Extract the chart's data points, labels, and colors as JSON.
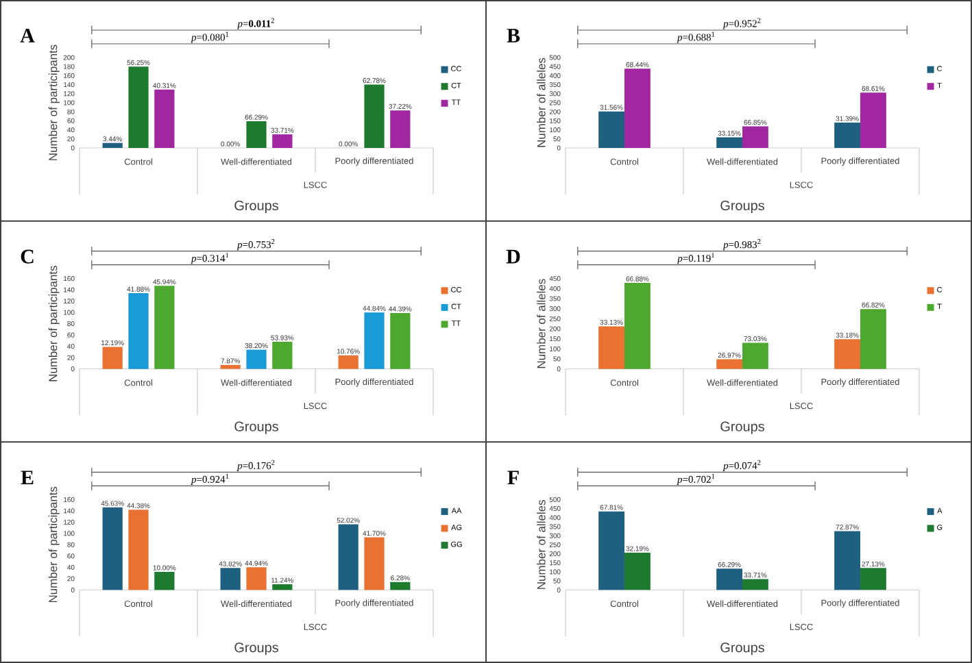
{
  "chart_data": [
    {
      "type": "bar",
      "title": "A",
      "xlabel": "Groups",
      "ylabel": "Number of participants",
      "categories": [
        "Control",
        "Well-differentiated",
        "Poorly differentiated"
      ],
      "ylim": [
        0,
        200
      ],
      "yticks": [
        0,
        20,
        40,
        60,
        80,
        100,
        120,
        140,
        160,
        180,
        200
      ],
      "legend": "right",
      "series": [
        {
          "name": "CC",
          "color": "#1f5f7f",
          "values": [
            11,
            0,
            0
          ]
        },
        {
          "name": "CT",
          "color": "#1e7a2e",
          "values": [
            180,
            59,
            140
          ]
        },
        {
          "name": "TT",
          "color": "#a0279f",
          "values": [
            129,
            30,
            83
          ]
        }
      ],
      "annotations": [
        "*p*=0.080$^{1}$",
        "*p*=**0.011**$^{2}$",
        "LSCC",
        "3.44%",
        "0.00%",
        "0.00%",
        "56.25%",
        "66.29%",
        "62.78%",
        "40.31%",
        "33.71%",
        "37.22%"
      ]
    },
    {
      "type": "bar",
      "title": "B",
      "xlabel": "Groups",
      "ylabel": "Number of alleles",
      "categories": [
        "Control",
        "Well-differentiated",
        "Poorly differentiated"
      ],
      "ylim": [
        0,
        500
      ],
      "yticks": [
        0,
        50,
        100,
        150,
        200,
        250,
        300,
        350,
        400,
        450,
        500
      ],
      "legend": "right",
      "series": [
        {
          "name": "C",
          "color": "#1f5f7f",
          "values": [
            202,
            59,
            140
          ]
        },
        {
          "name": "T",
          "color": "#a0279f",
          "values": [
            438,
            119,
            306
          ]
        }
      ],
      "annotations": [
        "*p*=0.688$^{1}$",
        "*p*=0.952$^{2}$",
        "LSCC",
        "31.56%",
        "33.15%",
        "31.39%",
        "68.44%",
        "66.85%",
        "68.61%"
      ]
    },
    {
      "type": "bar",
      "title": "C",
      "xlabel": "Groups",
      "ylabel": "Number of participants",
      "categories": [
        "Control",
        "Well-differentiated",
        "Poorly differentiated"
      ],
      "ylim": [
        0,
        160
      ],
      "yticks": [
        0,
        20,
        40,
        60,
        80,
        100,
        120,
        140,
        160
      ],
      "legend": "right",
      "series": [
        {
          "name": "CC",
          "color": "#e97132",
          "values": [
            39,
            7,
            24
          ]
        },
        {
          "name": "CT",
          "color": "#1a9ad6",
          "values": [
            134,
            34,
            100
          ]
        },
        {
          "name": "TT",
          "color": "#4ea72e",
          "values": [
            147,
            48,
            99
          ]
        }
      ],
      "annotations": [
        "*p*=0.314$^{1}$",
        "*p*=0.753$^{2}$",
        "LSCC",
        "12.19%",
        "7.87%",
        "10.76%",
        "41.88%",
        "38.20%",
        "44.84%",
        "45.94%",
        "53.93%",
        "44.39%"
      ]
    },
    {
      "type": "bar",
      "title": "D",
      "xlabel": "Groups",
      "ylabel": "Number of alleles",
      "categories": [
        "Control",
        "Well-differentiated",
        "Poorly differentiated"
      ],
      "ylim": [
        0,
        450
      ],
      "yticks": [
        0,
        50,
        100,
        150,
        200,
        250,
        300,
        350,
        400,
        450
      ],
      "legend": "right",
      "series": [
        {
          "name": "C",
          "color": "#e97132",
          "values": [
            212,
            48,
            148
          ]
        },
        {
          "name": "T",
          "color": "#4ea72e",
          "values": [
            428,
            130,
            298
          ]
        }
      ],
      "annotations": [
        "*p*=0.119$^{1}$",
        "*p*=0.983$^{2}$",
        "LSCC",
        "33.13%",
        "26.97%",
        "33.18%",
        "66.88%",
        "73.03%",
        "66.82%"
      ]
    },
    {
      "type": "bar",
      "title": "E",
      "xlabel": "Groups",
      "ylabel": "Number of participants",
      "categories": [
        "Control",
        "Well-differentiated",
        "Poorly differentiated"
      ],
      "ylim": [
        0,
        160
      ],
      "yticks": [
        0,
        20,
        40,
        60,
        80,
        100,
        120,
        140,
        160
      ],
      "legend": "right",
      "series": [
        {
          "name": "AA",
          "color": "#1f5f7f",
          "values": [
            146,
            39,
            116
          ]
        },
        {
          "name": "AG",
          "color": "#e97132",
          "values": [
            142,
            40,
            93
          ]
        },
        {
          "name": "GG",
          "color": "#1e7a2e",
          "values": [
            32,
            10,
            14
          ]
        }
      ],
      "annotations": [
        "*p*=0.924$^{1}$",
        "*p*=0.176$^{2}$",
        "LSCC",
        "45.63%",
        "43.82%",
        "52.02%",
        "44.38%",
        "44.94%",
        "41.70%",
        "10.00%",
        "11.24%",
        "6.28%"
      ]
    },
    {
      "type": "bar",
      "title": "F",
      "xlabel": "Groups",
      "ylabel": "Number of alleles",
      "categories": [
        "Control",
        "Well-differentiated",
        "Poorly differentiated"
      ],
      "ylim": [
        0,
        500
      ],
      "yticks": [
        0,
        50,
        100,
        150,
        200,
        250,
        300,
        350,
        400,
        450,
        500
      ],
      "legend": "right",
      "series": [
        {
          "name": "A",
          "color": "#1f5f7f",
          "values": [
            434,
            118,
            325
          ]
        },
        {
          "name": "G",
          "color": "#1e7a2e",
          "values": [
            206,
            60,
            121
          ]
        }
      ],
      "annotations": [
        "*p*=0.702$^{1}$",
        "*p*=0.074$^{2}$",
        "LSCC",
        "67.81%",
        "66.29%",
        "72.87%",
        "32.19%",
        "33.71%",
        "27.13%"
      ]
    }
  ]
}
